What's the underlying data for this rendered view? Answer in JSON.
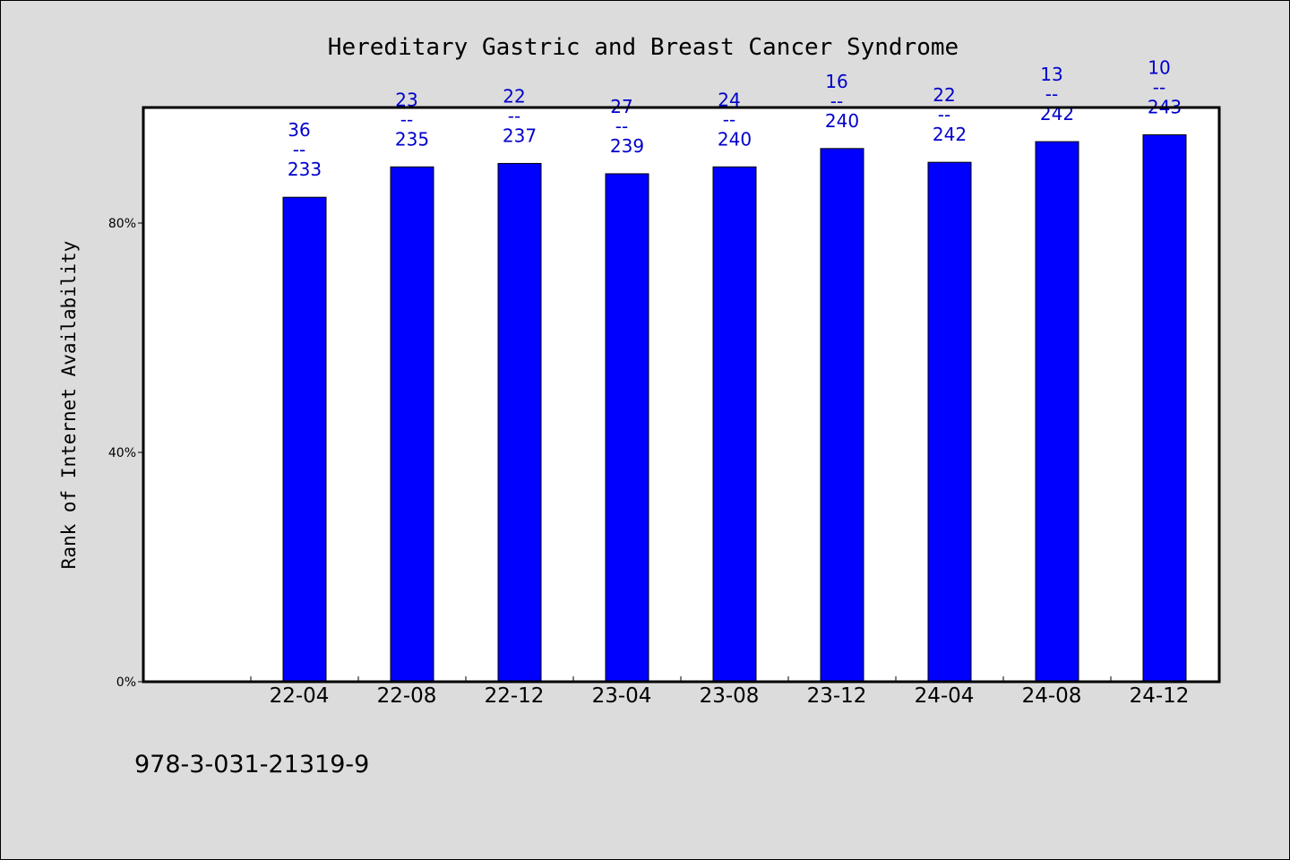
{
  "chart_data": {
    "type": "bar",
    "title": "Hereditary Gastric and Breast Cancer Syndrome",
    "xlabel": "",
    "ylabel": "Rank of Internet Availability",
    "categories": [
      "22-04",
      "22-08",
      "22-12",
      "23-04",
      "23-08",
      "23-12",
      "24-04",
      "24-08",
      "24-12"
    ],
    "values": [
      84.5,
      89.8,
      90.4,
      88.6,
      89.8,
      93.0,
      90.6,
      94.2,
      95.4
    ],
    "data_labels": [
      {
        "top": "36",
        "sep": "--",
        "bottom": "233"
      },
      {
        "top": "23",
        "sep": "--",
        "bottom": "235"
      },
      {
        "top": "22",
        "sep": "--",
        "bottom": "237"
      },
      {
        "top": "27",
        "sep": "--",
        "bottom": "239"
      },
      {
        "top": "24",
        "sep": "--",
        "bottom": "240"
      },
      {
        "top": "16",
        "sep": "--",
        "bottom": "240"
      },
      {
        "top": "22",
        "sep": "--",
        "bottom": "242"
      },
      {
        "top": "13",
        "sep": "--",
        "bottom": "242"
      },
      {
        "top": "10",
        "sep": "--",
        "bottom": "243"
      }
    ],
    "ylim": [
      0,
      100
    ],
    "yticks": [
      0,
      40,
      80
    ],
    "ytick_labels": [
      "0%",
      "40%",
      "80%"
    ],
    "grid": false,
    "bar_color": "#0000ff",
    "label_color": "#0000cc",
    "background_color": "#dcdcdc",
    "plot_background_color": "#ffffff"
  },
  "footer": {
    "isbn": "978-3-031-21319-9"
  }
}
